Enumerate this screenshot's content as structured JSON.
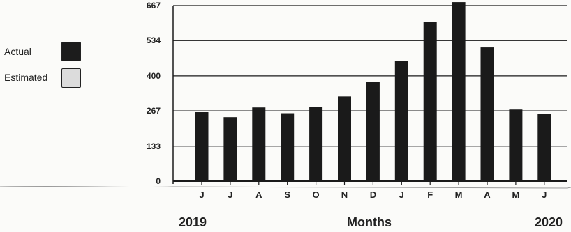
{
  "chart_data": {
    "type": "bar",
    "categories": [
      "J",
      "J",
      "A",
      "S",
      "O",
      "N",
      "D",
      "J",
      "F",
      "M",
      "A",
      "M",
      "J"
    ],
    "series": [
      {
        "name": "Actual",
        "values": [
          262,
          243,
          280,
          258,
          282,
          322,
          376,
          456,
          605,
          680,
          508,
          272,
          256
        ]
      }
    ],
    "yticks": [
      "0",
      "133",
      "267",
      "400",
      "534",
      "667"
    ],
    "ytick_values": [
      0,
      133,
      267,
      400,
      534,
      667
    ],
    "ylim": [
      0,
      667
    ],
    "xlabel": "Months",
    "ylabel": "",
    "title": "",
    "grid": true,
    "legend_position": "left",
    "legend": [
      {
        "label": "Actual",
        "color": "#1c1c1c"
      },
      {
        "label": "Estimated",
        "color": "#dcdcdc"
      }
    ],
    "start_year": "2019",
    "end_year": "2020",
    "colors": {
      "bar": "#1a1a1a",
      "grid": "#1a1a1a",
      "axis": "#1a1a1a"
    }
  }
}
